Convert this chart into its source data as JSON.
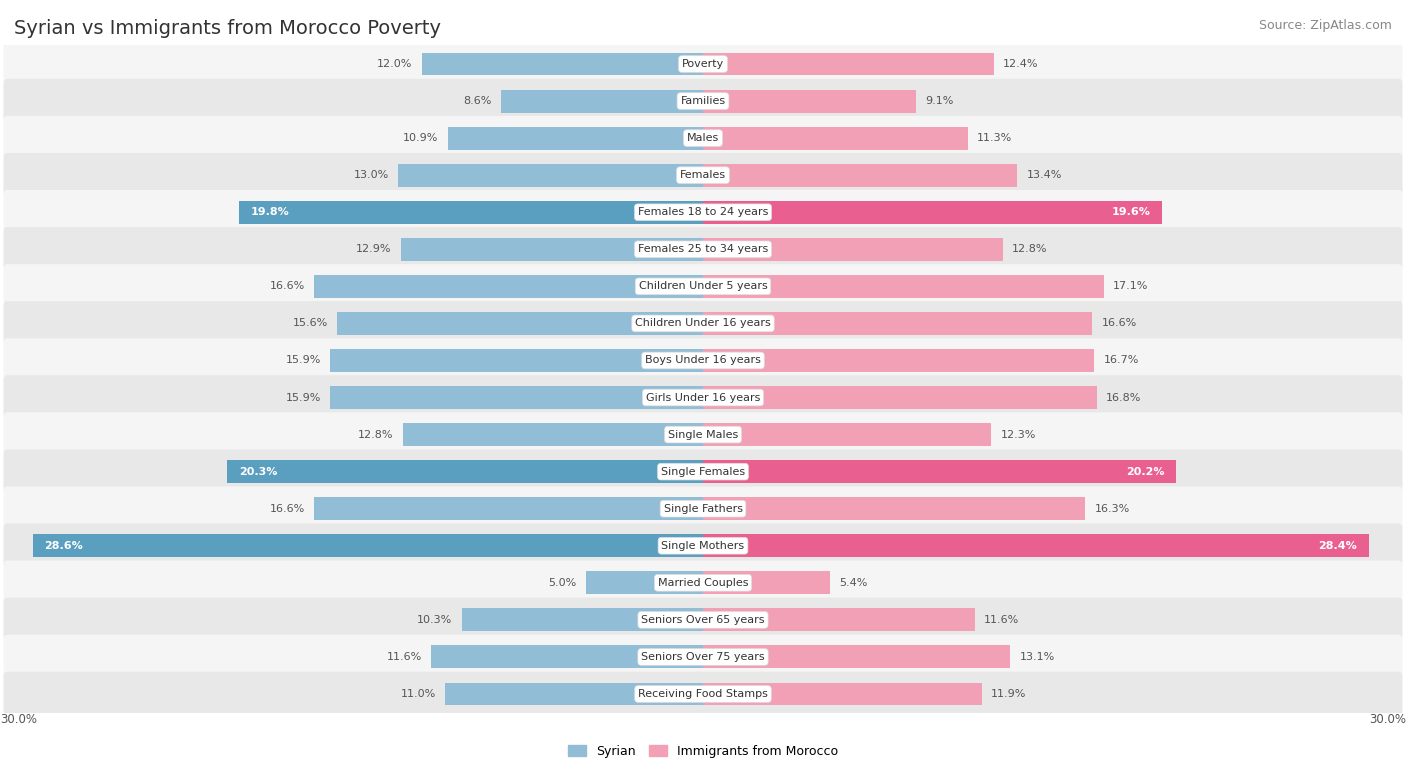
{
  "title": "Syrian vs Immigrants from Morocco Poverty",
  "source": "Source: ZipAtlas.com",
  "x_max": 30.0,
  "categories": [
    "Poverty",
    "Families",
    "Males",
    "Females",
    "Females 18 to 24 years",
    "Females 25 to 34 years",
    "Children Under 5 years",
    "Children Under 16 years",
    "Boys Under 16 years",
    "Girls Under 16 years",
    "Single Males",
    "Single Females",
    "Single Fathers",
    "Single Mothers",
    "Married Couples",
    "Seniors Over 65 years",
    "Seniors Over 75 years",
    "Receiving Food Stamps"
  ],
  "syrian_values": [
    12.0,
    8.6,
    10.9,
    13.0,
    19.8,
    12.9,
    16.6,
    15.6,
    15.9,
    15.9,
    12.8,
    20.3,
    16.6,
    28.6,
    5.0,
    10.3,
    11.6,
    11.0
  ],
  "morocco_values": [
    12.4,
    9.1,
    11.3,
    13.4,
    19.6,
    12.8,
    17.1,
    16.6,
    16.7,
    16.8,
    12.3,
    20.2,
    16.3,
    28.4,
    5.4,
    11.6,
    13.1,
    11.9
  ],
  "syrian_color": "#92bdd6",
  "morocco_color": "#f2a0b5",
  "syrian_high_color": "#5a9ec0",
  "morocco_high_color": "#e96090",
  "row_even_color": "#f5f5f5",
  "row_odd_color": "#e8e8e8",
  "high_threshold": 18.0,
  "legend_syrian": "Syrian",
  "legend_morocco": "Immigrants from Morocco",
  "background_color": "#ffffff",
  "title_fontsize": 14,
  "source_fontsize": 9,
  "label_fontsize": 8,
  "value_fontsize": 8
}
